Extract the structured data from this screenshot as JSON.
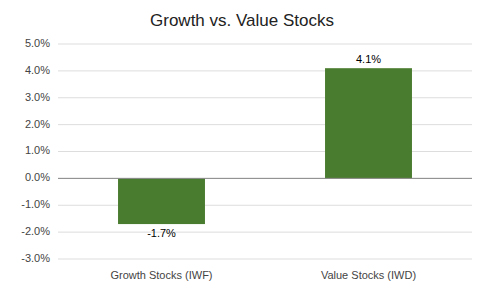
{
  "chart_data": {
    "type": "bar",
    "title": "Growth vs. Value Stocks",
    "categories": [
      "Growth Stocks (IWF)",
      "Value Stocks (IWD)"
    ],
    "values": [
      -1.7,
      4.1
    ],
    "value_labels": [
      "-1.7%",
      "4.1%"
    ],
    "data_labels": true,
    "color": "#4a7c2f",
    "ylim": [
      -3.0,
      5.0
    ],
    "yticks": [
      {
        "value": -3.0,
        "label": "-3.0%"
      },
      {
        "value": -2.0,
        "label": "-2.0%"
      },
      {
        "value": -1.0,
        "label": "-1.0%"
      },
      {
        "value": 0.0,
        "label": "0.0%"
      },
      {
        "value": 1.0,
        "label": "1.0%"
      },
      {
        "value": 2.0,
        "label": "2.0%"
      },
      {
        "value": 3.0,
        "label": "3.0%"
      },
      {
        "value": 4.0,
        "label": "4.0%"
      },
      {
        "value": 5.0,
        "label": "5.0%"
      }
    ],
    "grid": true
  }
}
